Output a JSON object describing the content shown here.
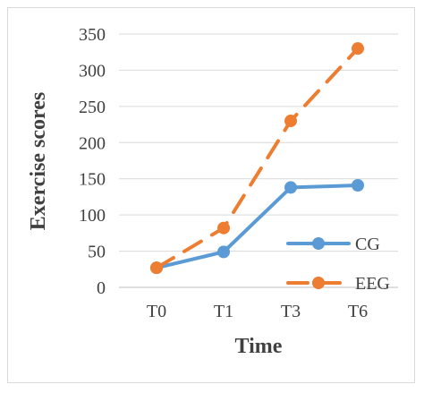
{
  "chart_data": {
    "type": "line",
    "title": "",
    "xlabel": "Time",
    "ylabel": "Exercise scores",
    "categories": [
      "T0",
      "T1",
      "T3",
      "T6"
    ],
    "ylim": [
      0,
      350
    ],
    "yticks": [
      0,
      50,
      100,
      150,
      200,
      250,
      300,
      350
    ],
    "grid": "horizontal",
    "legend_position": "right",
    "series": [
      {
        "name": "CG",
        "values": [
          27,
          49,
          138,
          141
        ],
        "color": "#5B9BD5",
        "line_style": "solid"
      },
      {
        "name": "EEG",
        "values": [
          27,
          82,
          230,
          330
        ],
        "color": "#ED7D31",
        "line_style": "dashed"
      }
    ]
  }
}
